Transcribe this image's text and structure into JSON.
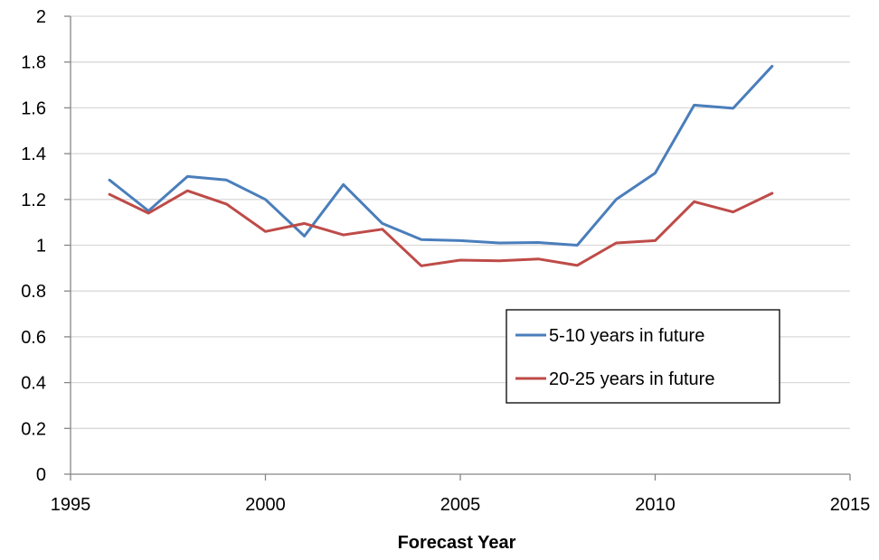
{
  "chart_data": {
    "type": "line",
    "title": "",
    "xlabel": "Forecast Year",
    "ylabel": "",
    "xlim": [
      1995,
      2015
    ],
    "ylim": [
      0,
      2
    ],
    "x_ticks": [
      "1995",
      "2000",
      "2005",
      "2010",
      "2015"
    ],
    "y_ticks": [
      "0",
      "0.2",
      "0.4",
      "0.6",
      "0.8",
      "1",
      "1.2",
      "1.4",
      "1.6",
      "1.8",
      "2"
    ],
    "grid": "horizontal",
    "legend_position": "lower-right inside plot",
    "x": [
      1996,
      1997,
      1998,
      1999,
      2000,
      2001,
      2002,
      2003,
      2004,
      2005,
      2006,
      2007,
      2008,
      2009,
      2010,
      2011,
      2012,
      2013
    ],
    "series": [
      {
        "name": "5-10 years in future",
        "color": "#4a7ebb",
        "values": [
          1.285,
          1.15,
          1.3,
          1.285,
          1.2,
          1.04,
          1.265,
          1.095,
          1.025,
          1.02,
          1.01,
          1.012,
          1.0,
          1.2,
          1.315,
          1.612,
          1.598,
          1.782
        ]
      },
      {
        "name": "20-25 years in future",
        "color": "#be4b48",
        "values": [
          1.222,
          1.14,
          1.238,
          1.18,
          1.06,
          1.095,
          1.045,
          1.07,
          0.91,
          0.935,
          0.932,
          0.94,
          0.912,
          1.01,
          1.02,
          1.19,
          1.145,
          1.227
        ]
      }
    ]
  }
}
